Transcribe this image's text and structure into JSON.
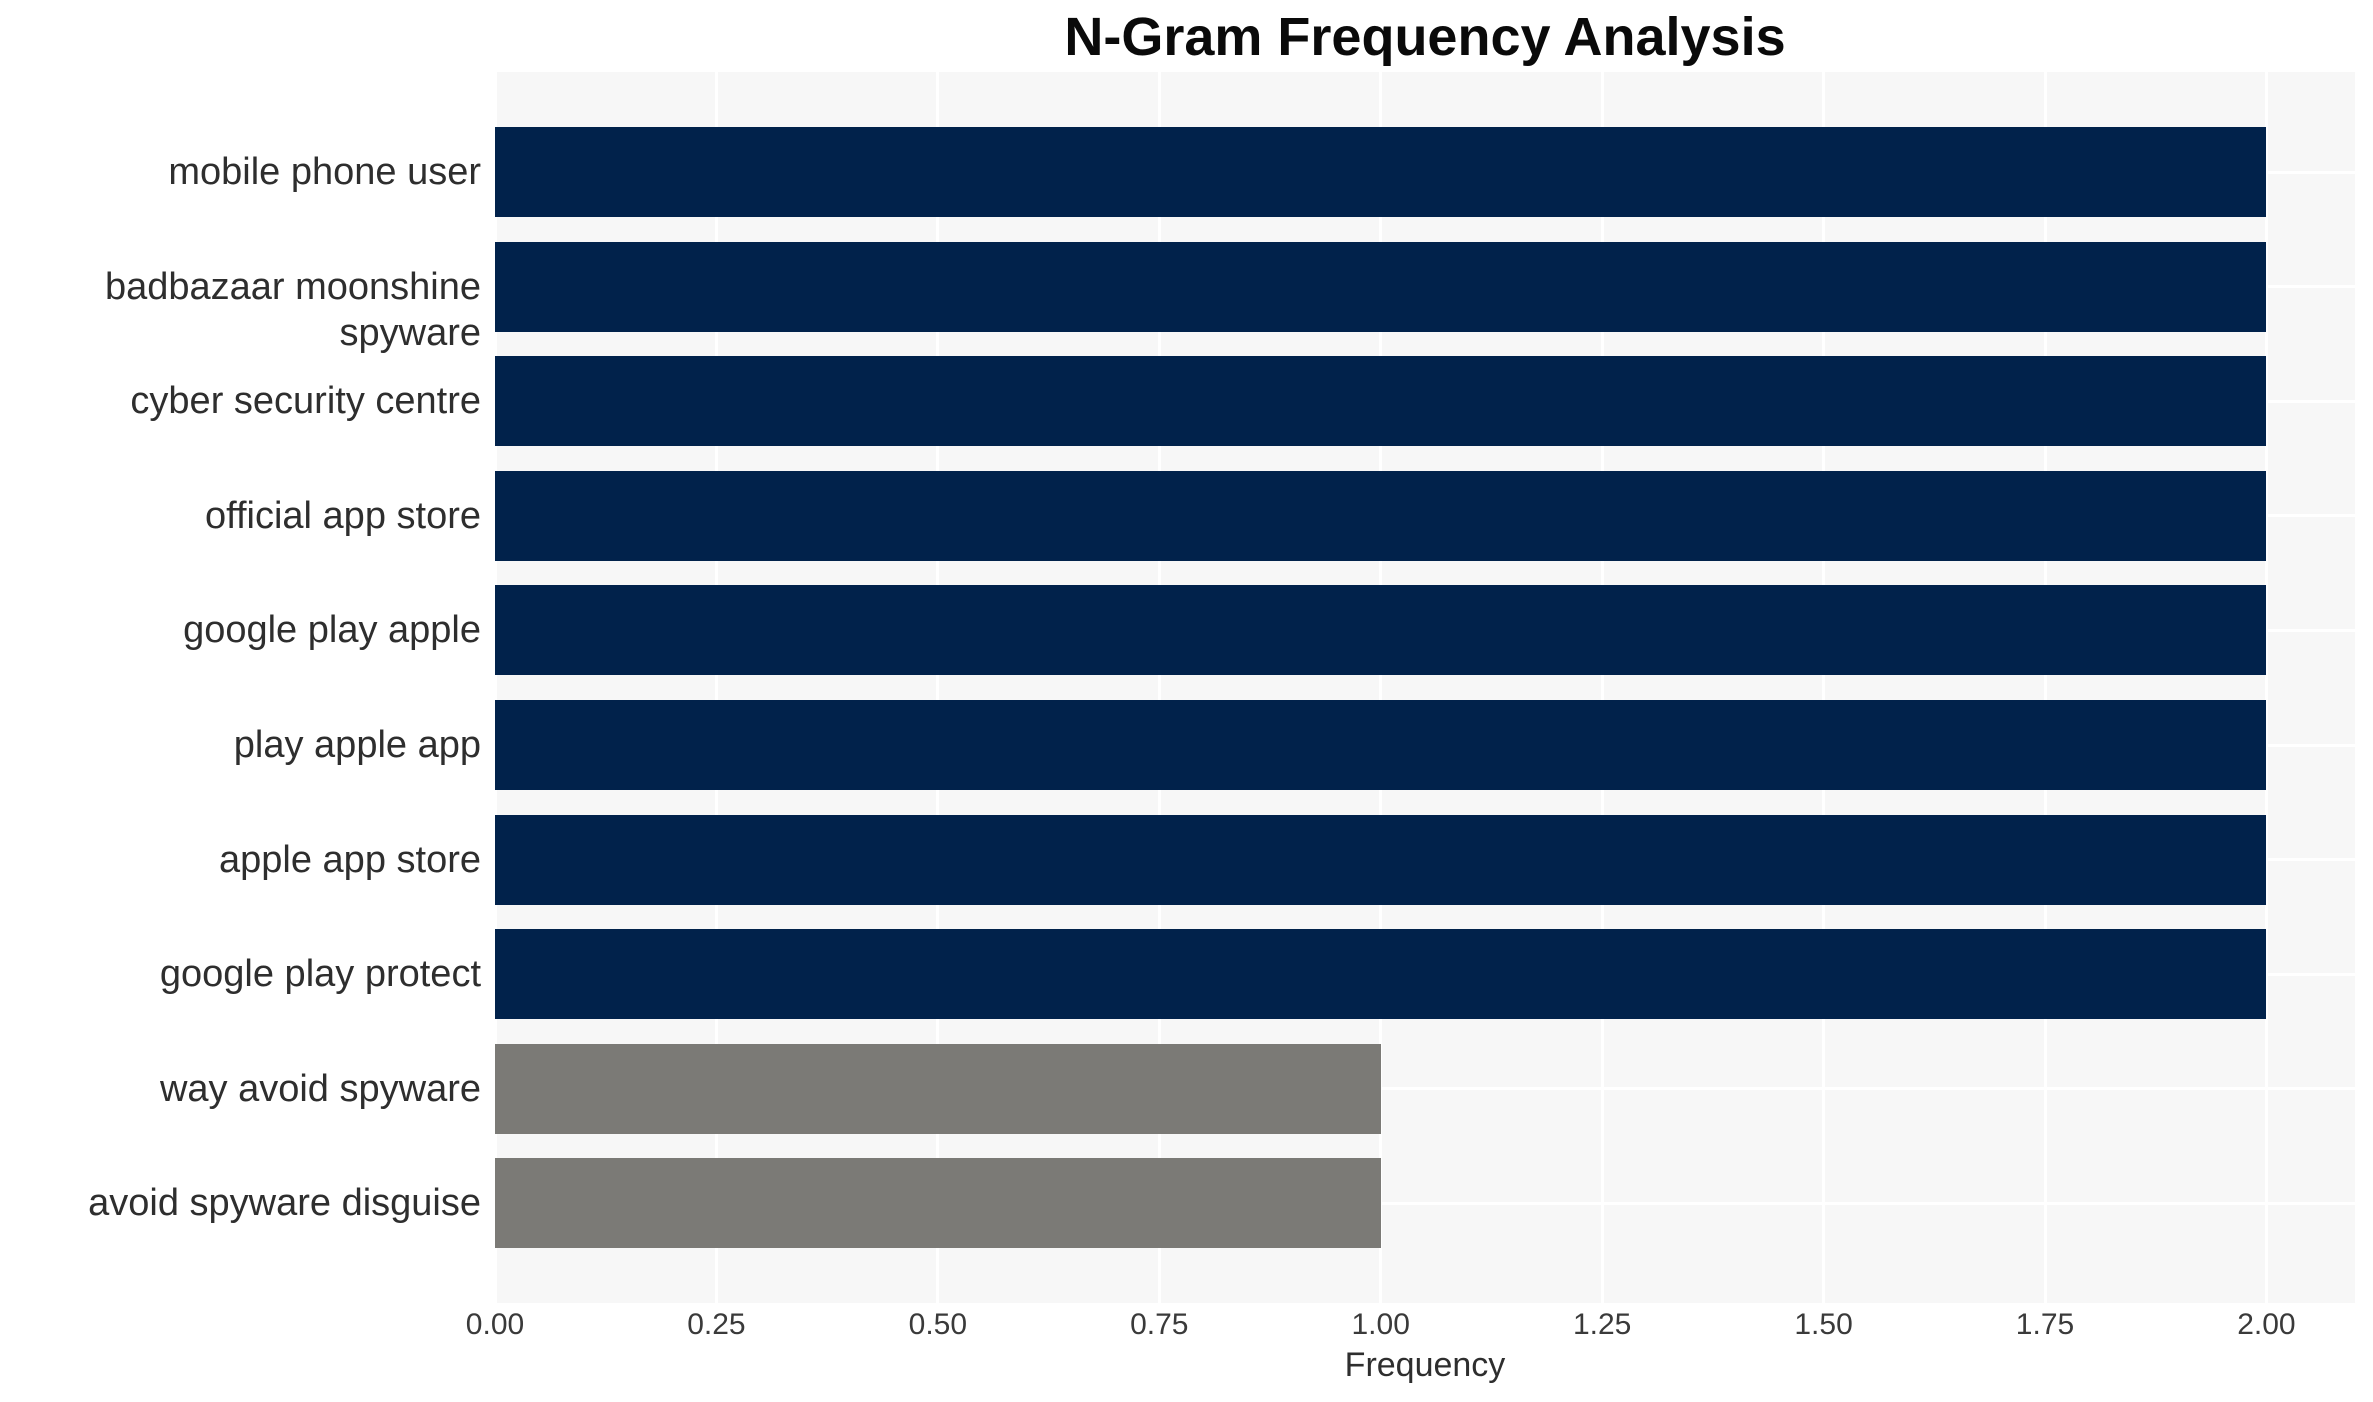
{
  "figure": {
    "background": "#FFFFFF",
    "plot_background": "#F7F7F7",
    "grid_color": "#FFFFFF",
    "bar_color_primary": "#01224B",
    "bar_color_secondary": "#7B7A76"
  },
  "chart_data": {
    "type": "bar",
    "orientation": "horizontal",
    "title": "N-Gram Frequency Analysis",
    "xlabel": "Frequency",
    "ylabel": "",
    "categories": [
      "mobile phone user",
      "badbazaar moonshine spyware",
      "cyber security centre",
      "official app store",
      "google play apple",
      "play apple app",
      "apple app store",
      "google play protect",
      "way avoid spyware",
      "avoid spyware disguise"
    ],
    "values": [
      2,
      2,
      2,
      2,
      2,
      2,
      2,
      2,
      1,
      1
    ],
    "bar_colors": [
      "#01224B",
      "#01224B",
      "#01224B",
      "#01224B",
      "#01224B",
      "#01224B",
      "#01224B",
      "#01224B",
      "#7B7A76",
      "#7B7A76"
    ],
    "xlim": [
      0,
      2.1
    ],
    "x_ticks": [
      0,
      0.25,
      0.5,
      0.75,
      1.0,
      1.25,
      1.5,
      1.75,
      2.0
    ],
    "x_tick_labels": [
      "0.00",
      "0.25",
      "0.50",
      "0.75",
      "1.00",
      "1.25",
      "1.50",
      "1.75",
      "2.00"
    ],
    "grid": true,
    "legend": false
  }
}
